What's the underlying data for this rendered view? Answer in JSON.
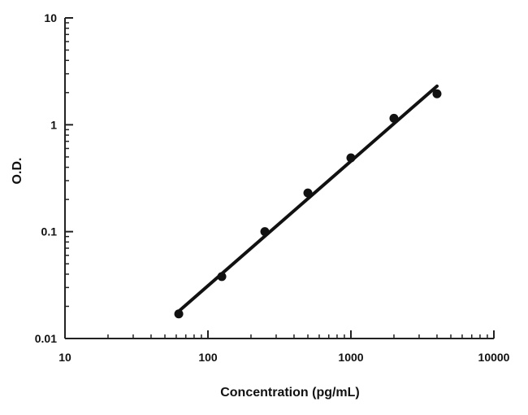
{
  "chart_data": {
    "type": "scatter",
    "title": "",
    "xlabel": "Concentration (pg/mL)",
    "ylabel": "O.D.",
    "x_scale": "log",
    "y_scale": "log",
    "xlim": [
      10,
      10000
    ],
    "ylim": [
      0.01,
      10
    ],
    "x_ticks": [
      10,
      100,
      1000,
      10000
    ],
    "x_tick_labels": [
      "10",
      "100",
      "1000",
      "10000"
    ],
    "y_ticks": [
      0.01,
      0.1,
      1,
      10
    ],
    "y_tick_labels": [
      "0.01",
      "0.1",
      "1",
      "10"
    ],
    "grid": false,
    "legend": "none",
    "colors": {
      "marks": "#111111",
      "axes": "#222222"
    },
    "series": [
      {
        "points": [
          {
            "x": 62.5,
            "y": 0.017
          },
          {
            "x": 125,
            "y": 0.038
          },
          {
            "x": 250,
            "y": 0.1
          },
          {
            "x": 500,
            "y": 0.23
          },
          {
            "x": 1000,
            "y": 0.49
          },
          {
            "x": 2000,
            "y": 1.15
          },
          {
            "x": 4000,
            "y": 1.95
          }
        ]
      }
    ],
    "fit_line": {
      "type": "linear-loglog",
      "x": [
        62.5,
        4000
      ],
      "y": [
        0.018,
        2.3
      ]
    }
  }
}
